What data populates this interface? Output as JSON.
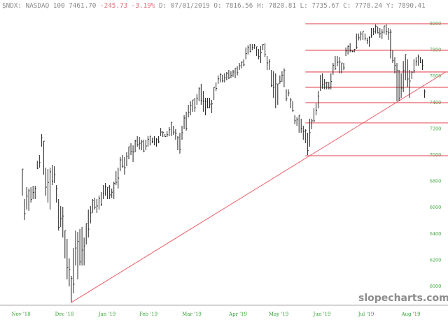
{
  "header": {
    "symbol": "$NDX:",
    "name": "NASDAQ 100",
    "last": "7461.70",
    "change": "-245.73",
    "change_pct": "-3.19%",
    "date": "D: 07/01/2019",
    "open": "O: 7816.56",
    "high": "H: 7820.81",
    "low": "L: 7735.67",
    "close": "C: 7778.24",
    "y": "Y: 7890.41"
  },
  "watermark": "slopecharts.com",
  "colors": {
    "bars": "#222222",
    "levels": "#e8606a",
    "trendline": "#e8606a",
    "ticks": "#3aa33a",
    "negative": "#e0707a"
  },
  "chart_data": {
    "type": "ohlc-bar",
    "title": "",
    "ylim": [
      5850,
      8040
    ],
    "y_ticks": [
      "8000",
      "7800",
      "7600",
      "7400",
      "7200",
      "7000",
      "6800",
      "6600",
      "6400",
      "6200",
      "6000"
    ],
    "x_ticks": [
      "Nov '18",
      "Dec '18",
      "Jan '19",
      "Feb '19",
      "Mar '19",
      "Apr '19",
      "May '19",
      "Jun '19",
      "Jul '19",
      "Aug '19"
    ],
    "bars_high_low": [
      [
        6893,
        6691
      ],
      [
        6665,
        6506
      ],
      [
        6755,
        6585
      ],
      [
        6745,
        6575
      ],
      [
        6755,
        6638
      ],
      [
        6766,
        6665
      ],
      [
        6766,
        6665
      ],
      [
        6957,
        6893
      ],
      [
        7000,
        6904
      ],
      [
        7160,
        7064
      ],
      [
        7106,
        6851
      ],
      [
        6904,
        6691
      ],
      [
        6894,
        6638
      ],
      [
        6904,
        6585
      ],
      [
        6926,
        6771
      ],
      [
        6915,
        6787
      ],
      [
        6771,
        6638
      ],
      [
        6665,
        6425
      ],
      [
        6612,
        6452
      ],
      [
        6606,
        6372
      ],
      [
        6425,
        6213
      ],
      [
        6362,
        6053
      ],
      [
        6213,
        6000
      ],
      [
        6080,
        5877
      ],
      [
        6292,
        5947
      ],
      [
        6425,
        6159
      ],
      [
        6415,
        6053
      ],
      [
        6436,
        6159
      ],
      [
        6452,
        6159
      ],
      [
        6372,
        6159
      ],
      [
        6479,
        6319
      ],
      [
        6585,
        6372
      ],
      [
        6612,
        6479
      ],
      [
        6665,
        6559
      ],
      [
        6675,
        6585
      ],
      [
        6665,
        6559
      ],
      [
        6691,
        6585
      ],
      [
        6718,
        6612
      ],
      [
        6771,
        6665
      ],
      [
        6787,
        6691
      ],
      [
        6755,
        6665
      ],
      [
        6771,
        6665
      ],
      [
        6745,
        6675
      ],
      [
        6798,
        6665
      ],
      [
        6877,
        6771
      ],
      [
        6904,
        6745
      ],
      [
        6984,
        6877
      ],
      [
        7000,
        6904
      ],
      [
        6984,
        6851
      ],
      [
        7021,
        6915
      ],
      [
        7064,
        6968
      ],
      [
        7090,
        7000
      ],
      [
        7074,
        6947
      ],
      [
        7117,
        7021
      ],
      [
        7144,
        7064
      ],
      [
        7138,
        7042
      ],
      [
        7117,
        7037
      ],
      [
        7117,
        7021
      ],
      [
        7117,
        7037
      ],
      [
        7144,
        7064
      ],
      [
        7144,
        7074
      ],
      [
        7133,
        7090
      ],
      [
        7144,
        7074
      ],
      [
        7128,
        7064
      ],
      [
        7144,
        7090
      ],
      [
        7207,
        7144
      ],
      [
        7181,
        7138
      ],
      [
        7160,
        7138
      ],
      [
        7181,
        7138
      ],
      [
        7213,
        7144
      ],
      [
        7250,
        7144
      ],
      [
        7223,
        7154
      ],
      [
        7197,
        7117
      ],
      [
        7144,
        7037
      ],
      [
        7170,
        7011
      ],
      [
        7223,
        7117
      ],
      [
        7303,
        7197
      ],
      [
        7330,
        7186
      ],
      [
        7383,
        7287
      ],
      [
        7410,
        7303
      ],
      [
        7420,
        7330
      ],
      [
        7436,
        7330
      ],
      [
        7463,
        7383
      ],
      [
        7516,
        7410
      ],
      [
        7543,
        7383
      ],
      [
        7489,
        7330
      ],
      [
        7436,
        7303
      ],
      [
        7436,
        7356
      ],
      [
        7436,
        7356
      ],
      [
        7420,
        7319
      ],
      [
        7516,
        7420
      ],
      [
        7553,
        7489
      ],
      [
        7606,
        7543
      ],
      [
        7622,
        7553
      ],
      [
        7612,
        7553
      ],
      [
        7622,
        7553
      ],
      [
        7633,
        7569
      ],
      [
        7649,
        7580
      ],
      [
        7638,
        7585
      ],
      [
        7649,
        7596
      ],
      [
        7660,
        7585
      ],
      [
        7676,
        7606
      ],
      [
        7702,
        7649
      ],
      [
        7713,
        7660
      ],
      [
        7729,
        7676
      ],
      [
        7819,
        7729
      ],
      [
        7835,
        7766
      ],
      [
        7846,
        7782
      ],
      [
        7846,
        7798
      ],
      [
        7846,
        7809
      ],
      [
        7825,
        7755
      ],
      [
        7809,
        7729
      ],
      [
        7830,
        7702
      ],
      [
        7846,
        7798
      ],
      [
        7851,
        7745
      ],
      [
        7755,
        7649
      ],
      [
        7729,
        7649
      ],
      [
        7649,
        7516
      ],
      [
        7638,
        7436
      ],
      [
        7622,
        7356
      ],
      [
        7543,
        7383
      ],
      [
        7606,
        7543
      ],
      [
        7638,
        7556
      ],
      [
        7660,
        7516
      ],
      [
        7500,
        7410
      ],
      [
        7500,
        7447
      ],
      [
        7436,
        7356
      ],
      [
        7410,
        7330
      ],
      [
        7303,
        7234
      ],
      [
        7287,
        7223
      ],
      [
        7303,
        7170
      ],
      [
        7277,
        7170
      ],
      [
        7223,
        7117
      ],
      [
        7197,
        7090
      ],
      [
        7170,
        7000
      ],
      [
        7277,
        7064
      ],
      [
        7277,
        7197
      ],
      [
        7356,
        7250
      ],
      [
        7394,
        7303
      ],
      [
        7489,
        7356
      ],
      [
        7606,
        7489
      ],
      [
        7622,
        7505
      ],
      [
        7580,
        7500
      ],
      [
        7558,
        7500
      ],
      [
        7558,
        7500
      ],
      [
        7622,
        7500
      ],
      [
        7702,
        7612
      ],
      [
        7755,
        7649
      ],
      [
        7755,
        7676
      ],
      [
        7745,
        7622
      ],
      [
        7702,
        7622
      ],
      [
        7702,
        7649
      ],
      [
        7819,
        7755
      ],
      [
        7835,
        7766
      ],
      [
        7851,
        7782
      ],
      [
        7798,
        7782
      ],
      [
        7809,
        7782
      ],
      [
        7925,
        7809
      ],
      [
        7925,
        7873
      ],
      [
        7942,
        7873
      ],
      [
        7942,
        7878
      ],
      [
        7925,
        7873
      ],
      [
        7894,
        7846
      ],
      [
        7904,
        7825
      ],
      [
        7968,
        7894
      ],
      [
        7968,
        7915
      ],
      [
        7995,
        7925
      ],
      [
        7979,
        7926
      ],
      [
        7968,
        7894
      ],
      [
        7958,
        7884
      ],
      [
        7984,
        7925
      ],
      [
        7995,
        7915
      ],
      [
        7968,
        7878
      ],
      [
        7958,
        7736
      ],
      [
        7798,
        7702
      ],
      [
        7745,
        7622
      ],
      [
        7702,
        7410
      ],
      [
        7649,
        7410
      ],
      [
        7622,
        7436
      ],
      [
        7716,
        7479
      ],
      [
        7766,
        7569
      ],
      [
        7729,
        7516
      ],
      [
        7649,
        7436
      ],
      [
        7638,
        7580
      ],
      [
        7729,
        7622
      ],
      [
        7745,
        7680
      ],
      [
        7766,
        7680
      ],
      [
        7745,
        7702
      ],
      [
        7729,
        7649
      ],
      [
        7500,
        7436
      ]
    ],
    "horizontal_levels": [
      8000,
      7798,
      7633,
      7516,
      7399,
      7245,
      6995
    ],
    "levels_from_bar": 134,
    "trendline": {
      "from": {
        "bar": 24,
        "price": 5877
      },
      "to": {
        "bar": 200,
        "price": 7633
      }
    },
    "grid": false
  }
}
